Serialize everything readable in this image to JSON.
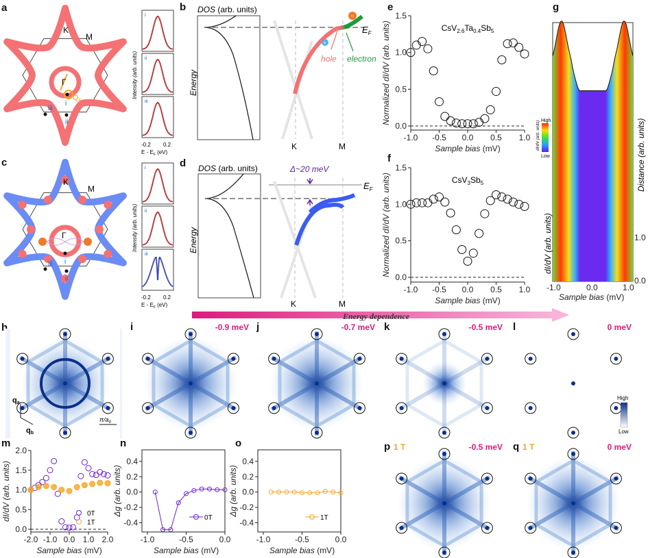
{
  "panel_labels": [
    "a",
    "b",
    "c",
    "d",
    "e",
    "f",
    "g",
    "h",
    "i",
    "j",
    "k",
    "l",
    "m",
    "n",
    "o",
    "p",
    "q"
  ],
  "colors": {
    "red_band": "#f47174",
    "blue_band": "#6b8cf5",
    "hole": "#f47174",
    "electron": "#1f9a3a",
    "purple": "#6a1fd6",
    "orange": "#f5a623",
    "energy_arrow": "#e0197d",
    "fft_blue": "#1a4fa8"
  },
  "panel_a": {
    "K": "K",
    "M": "M",
    "Gamma": "Γ",
    "qp": "Q",
    "qp_sub": "P",
    "i": "i",
    "ii": "ii",
    "iii": "iii"
  },
  "panel_c": {
    "K": "K",
    "M": "M",
    "Gamma": "Γ",
    "i": "i",
    "ii": "ii",
    "iii": "iii"
  },
  "edc_insets": {
    "ylabel": "Intensity (arb. units)",
    "xlabel_pre": "E - E",
    "xlabel_sub": "F",
    "xlabel_post": " (eV)",
    "xticks": [
      "-0.2",
      "0.2"
    ],
    "labels": [
      "i",
      "ii",
      "iii"
    ]
  },
  "panel_b": {
    "dos": "DOS",
    "dos_units": " (arb. units)",
    "energy": "Energy",
    "ef": "E",
    "ef_sub": "F",
    "K": "K",
    "M": "M",
    "hole": "hole",
    "electron": "electron",
    "plus": "+",
    "minus": "−"
  },
  "panel_d": {
    "dos": "DOS",
    "dos_units": " (arb. units)",
    "energy": "Energy",
    "ef": "E",
    "ef_sub": "F",
    "K": "K",
    "M": "M",
    "gap": "Δ~20 meV"
  },
  "energy_dependence": "Energy dependence",
  "panel_g": {
    "colorbar_high": "High",
    "colorbar_low": "Low",
    "colorbar_label": "dI/dV (arb. units)",
    "ylabel_right": "Distance (arb. units)",
    "ylabel_left": "dI/dV (arb. units)",
    "yticks": [
      "0.0",
      "1.0"
    ],
    "xticks": [
      "-1.0",
      "0.0",
      "1.0"
    ],
    "xlabel": "Sample bias",
    "xlabel_unit": " (mV)"
  },
  "panel_h": {
    "qa": "q",
    "qa_sub": "a",
    "qb": "q",
    "qb_sub": "b",
    "scale": "π/a",
    "scale_sub": "0"
  },
  "fft_panels": [
    {
      "id": "i",
      "energy": "-0.9 meV",
      "field": ""
    },
    {
      "id": "j",
      "energy": "-0.7 meV",
      "field": ""
    },
    {
      "id": "k",
      "energy": "-0.5 meV",
      "field": ""
    },
    {
      "id": "l",
      "energy": "0 meV",
      "field": ""
    },
    {
      "id": "p",
      "energy": "-0.5 meV",
      "field": "1 T"
    },
    {
      "id": "q",
      "energy": "0 meV",
      "field": "1 T"
    }
  ],
  "fft_colorbar": {
    "high": "High",
    "low": "Low"
  },
  "chart_data": [
    {
      "id": "e",
      "type": "scatter",
      "title_parts": [
        "CsV",
        "2.6",
        "Ta",
        "0.4",
        "Sb",
        "5"
      ],
      "xlabel": "Sample bias",
      "xlabel_unit": " (mV)",
      "ylabel": "Normalized dI/dV (arb. units)",
      "xlim": [
        -1,
        1
      ],
      "ylim": [
        0,
        1.5
      ],
      "xticks": [
        -1.0,
        -0.5,
        0.0,
        0.5,
        1.0
      ],
      "yticks": [
        0.0,
        0.5,
        1.0,
        1.5
      ],
      "x": [
        -1.0,
        -0.9,
        -0.8,
        -0.7,
        -0.6,
        -0.5,
        -0.4,
        -0.3,
        -0.2,
        -0.1,
        0.0,
        0.1,
        0.2,
        0.3,
        0.4,
        0.5,
        0.6,
        0.7,
        0.8,
        0.9,
        1.0
      ],
      "y": [
        1.0,
        1.1,
        1.15,
        1.05,
        0.75,
        0.33,
        0.13,
        0.07,
        0.04,
        0.03,
        0.03,
        0.03,
        0.05,
        0.1,
        0.22,
        0.47,
        0.9,
        1.12,
        1.13,
        1.07,
        0.98
      ]
    },
    {
      "id": "f",
      "type": "scatter",
      "title_parts": [
        "CsV",
        "3",
        "Sb",
        "5"
      ],
      "xlabel": "Sample bias",
      "xlabel_unit": " (mV)",
      "ylabel": "Normalized dI/dV (arb. units)",
      "xlim": [
        -1,
        1
      ],
      "ylim": [
        0,
        1.5
      ],
      "xticks": [
        -1.0,
        -0.5,
        0.0,
        0.5,
        1.0
      ],
      "yticks": [
        0.0,
        0.5,
        1.0,
        1.5
      ],
      "x": [
        -1.0,
        -0.9,
        -0.8,
        -0.7,
        -0.6,
        -0.5,
        -0.4,
        -0.3,
        -0.2,
        -0.1,
        0.0,
        0.1,
        0.2,
        0.3,
        0.4,
        0.5,
        0.6,
        0.7,
        0.8,
        0.9,
        1.0
      ],
      "y": [
        1.0,
        1.02,
        1.02,
        1.02,
        1.07,
        1.1,
        1.03,
        0.88,
        0.65,
        0.38,
        0.22,
        0.33,
        0.6,
        0.87,
        1.05,
        1.13,
        1.1,
        1.07,
        1.03,
        1.0,
        0.97
      ]
    },
    {
      "id": "m",
      "type": "scatter",
      "xlabel": "Sample bias",
      "xlabel_unit": " (mV)",
      "ylabel": "dI/dV (arb. units)",
      "xlim": [
        -2,
        2
      ],
      "ylim": [
        0,
        2
      ],
      "xticks": [
        -2.0,
        -1.0,
        0.0,
        1.0,
        2.0
      ],
      "yticks": [
        0.0,
        0.5,
        1.0,
        1.5,
        2.0
      ],
      "legend": "bottom-right",
      "series": [
        {
          "name": "0T",
          "color": "#6a1fd6",
          "x": [
            -2.0,
            -1.8,
            -1.6,
            -1.4,
            -1.2,
            -1.0,
            -0.8,
            -0.6,
            -0.4,
            -0.2,
            0.0,
            0.2,
            0.4,
            0.6,
            0.8,
            1.0,
            1.2,
            1.4,
            1.6,
            1.8,
            2.0
          ],
          "y": [
            1.0,
            1.05,
            1.12,
            1.2,
            1.3,
            1.5,
            1.73,
            0.9,
            0.2,
            0.05,
            0.04,
            0.05,
            0.3,
            1.35,
            1.7,
            1.55,
            1.4,
            1.38,
            1.45,
            1.4,
            1.37
          ]
        },
        {
          "name": "1T",
          "color": "#f5a623",
          "x": [
            -2.0,
            -1.6,
            -1.2,
            -0.8,
            -0.4,
            0.0,
            0.4,
            0.8,
            1.2,
            1.6,
            2.0
          ],
          "y": [
            1.0,
            1.07,
            1.1,
            1.07,
            1.0,
            0.97,
            1.07,
            1.12,
            1.15,
            1.18,
            1.17
          ]
        }
      ]
    },
    {
      "id": "n",
      "type": "line",
      "xlabel": "Sample bias",
      "xlabel_unit": " (mV)",
      "ylabel": "Δg (arb. units)",
      "xlim": [
        -1,
        0
      ],
      "ylim": [
        -0.52,
        0.55
      ],
      "xticks": [
        -1.0,
        -0.5,
        0.0
      ],
      "yticks": [
        -0.4,
        -0.2,
        0.0,
        0.2,
        0.4
      ],
      "legend": "bottom-right",
      "series": [
        {
          "name": "0T",
          "color": "#6a1fd6",
          "x": [
            -0.9,
            -0.8,
            -0.7,
            -0.6,
            -0.5,
            -0.4,
            -0.3,
            -0.2,
            -0.1,
            0.0
          ],
          "y": [
            0.0,
            -0.49,
            -0.49,
            -0.14,
            -0.02,
            0.02,
            0.04,
            0.04,
            0.03,
            0.03
          ]
        }
      ]
    },
    {
      "id": "o",
      "type": "line",
      "xlabel": "Sample bias",
      "xlabel_unit": " (mV)",
      "ylabel": "Δg (arb. units)",
      "xlim": [
        -1,
        0
      ],
      "ylim": [
        -0.52,
        0.55
      ],
      "xticks": [
        -1.0,
        -0.5,
        0.0
      ],
      "yticks": [
        -0.4,
        -0.2,
        0.0,
        0.2,
        0.4
      ],
      "legend": "bottom-right",
      "series": [
        {
          "name": "1T",
          "color": "#f5a623",
          "x": [
            -0.9,
            -0.8,
            -0.7,
            -0.6,
            -0.5,
            -0.4,
            -0.3,
            -0.2,
            -0.1,
            0.0
          ],
          "y": [
            0.0,
            0.0,
            0.0,
            0.0,
            -0.01,
            -0.01,
            -0.01,
            0.01,
            0.0,
            -0.01
          ]
        }
      ]
    }
  ]
}
